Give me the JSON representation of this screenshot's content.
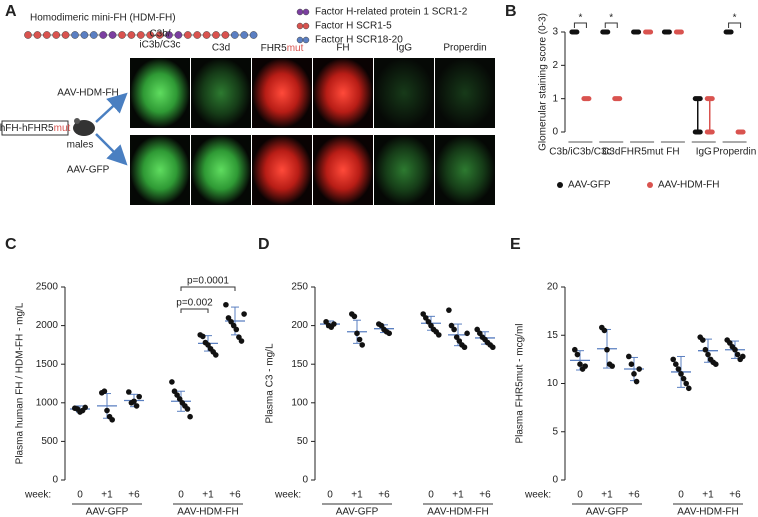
{
  "panels": [
    "A",
    "B",
    "C",
    "D",
    "E"
  ],
  "panel_a": {
    "title": "Homodimeric mini-FH (HDM-FH)",
    "legend": [
      {
        "label": "Factor H-related protein 1 SCR1-2",
        "color": "#7b3fa0"
      },
      {
        "label": "Factor H SCR1-5",
        "color": "#d9534f"
      },
      {
        "label": "Factor H SCR18-20",
        "color": "#5b7fc2"
      }
    ],
    "columns": [
      {
        "lines": [
          "C3b/",
          "iC3b/C3c"
        ]
      },
      {
        "text": "C3d"
      },
      {
        "text": "FHR5",
        "suffix": "mut"
      },
      {
        "text": "FH"
      },
      {
        "text": "IgG"
      },
      {
        "text": "Properdin"
      }
    ],
    "rows": [
      "AAV-HDM-FH",
      "AAV-GFP"
    ],
    "mouse_label": {
      "text": "hFH-hFHR5",
      "suffix": "mut"
    },
    "mouse_sublabel": "males"
  },
  "chart_data": [
    {
      "type": "score",
      "ylabel": "Glomerular staining score (0-3)",
      "categories": [
        "C3b/iC3b/C3c",
        "C3d",
        "FHR5mut",
        "FH",
        "IgG",
        "Properdin"
      ],
      "ylim": [
        0,
        3
      ],
      "yticks": [
        0,
        1,
        2,
        3
      ],
      "series": [
        {
          "name": "AAV-GFP",
          "color": "#111111",
          "values": [
            [
              3
            ],
            [
              3
            ],
            [
              3
            ],
            [
              3
            ],
            [
              0,
              1
            ],
            [
              3
            ]
          ]
        },
        {
          "name": "AAV-HDM-FH",
          "color": "#d9534f",
          "values": [
            [
              1
            ],
            [
              1
            ],
            [
              3
            ],
            [
              3
            ],
            [
              0,
              1
            ],
            [
              0
            ]
          ]
        }
      ],
      "annotations": [
        {
          "category": 0,
          "text": "*"
        },
        {
          "category": 1,
          "text": "*"
        },
        {
          "category": 5,
          "text": "*"
        }
      ]
    },
    {
      "type": "dot",
      "ylabel": "Plasma human FH / HDM-FH - mg/L",
      "x_label": "week:",
      "categories": [
        "0",
        "+1",
        "+6",
        "0",
        "+1",
        "+6"
      ],
      "groups": [
        "AAV-GFP",
        "AAV-HDM-FH"
      ],
      "ylim": [
        0,
        2500
      ],
      "yticks": [
        0,
        500,
        1000,
        1500,
        2000,
        2500
      ],
      "series": [
        {
          "color": "#111111",
          "values": [
            [
              930,
              920,
              880,
              900,
              940
            ],
            [
              1130,
              1150,
              900,
              820,
              780
            ],
            [
              1140,
              1000,
              1020,
              960,
              1080
            ],
            [
              1270,
              1150,
              1100,
              1050,
              1000,
              960,
              920,
              820
            ],
            [
              1880,
              1860,
              1780,
              1750,
              1700,
              1660,
              1620
            ],
            [
              2270,
              2100,
              2050,
              2000,
              1950,
              1850,
              1800,
              2150
            ]
          ],
          "mean": [
            920,
            960,
            1030,
            1020,
            1770,
            2060
          ],
          "sd": [
            40,
            160,
            80,
            130,
            100,
            180
          ]
        }
      ],
      "annotations": [
        {
          "from": 3,
          "to": 4,
          "text": "p=0.002"
        },
        {
          "from": 3,
          "to": 5,
          "text": "p=0.0001"
        }
      ]
    },
    {
      "type": "dot",
      "ylabel": "Plasma C3 - mg/L",
      "x_label": "week:",
      "categories": [
        "0",
        "+1",
        "+6",
        "0",
        "+1",
        "+6"
      ],
      "groups": [
        "AAV-GFP",
        "AAV-HDM-FH"
      ],
      "ylim": [
        0,
        250
      ],
      "yticks": [
        0,
        50,
        100,
        150,
        200,
        250
      ],
      "series": [
        {
          "color": "#111111",
          "values": [
            [
              205,
              200,
              198,
              202
            ],
            [
              215,
              212,
              190,
              182,
              175
            ],
            [
              202,
              200,
              195,
              192,
              190
            ],
            [
              215,
              210,
              205,
              200,
              195,
              192,
              188
            ],
            [
              220,
              200,
              195,
              185,
              180,
              175,
              172,
              190
            ],
            [
              195,
              190,
              185,
              182,
              178,
              175,
              172
            ]
          ],
          "mean": [
            202,
            192,
            196,
            203,
            188,
            184
          ],
          "sd": [
            4,
            15,
            5,
            9,
            14,
            8
          ]
        }
      ]
    },
    {
      "type": "dot",
      "ylabel": "Plasma FHR5mut - mcg/ml",
      "x_label": "week:",
      "categories": [
        "0",
        "+1",
        "+6",
        "0",
        "+1",
        "+6"
      ],
      "groups": [
        "AAV-GFP",
        "AAV-HDM-FH"
      ],
      "ylim": [
        0,
        20
      ],
      "yticks": [
        0,
        5,
        10,
        15,
        20
      ],
      "series": [
        {
          "color": "#111111",
          "values": [
            [
              13.5,
              13,
              12,
              11.5,
              11.8
            ],
            [
              15.8,
              15.5,
              13.5,
              12,
              11.8
            ],
            [
              12.8,
              12,
              11,
              10.2,
              11.5
            ],
            [
              12.5,
              12,
              11.5,
              11,
              10.5,
              10,
              9.5
            ],
            [
              14.8,
              14.5,
              13.5,
              13,
              12.5,
              12.2,
              12
            ],
            [
              14.5,
              14.2,
              13.8,
              13.5,
              13,
              12.5,
              12.8
            ]
          ],
          "mean": [
            12.4,
            13.6,
            11.5,
            11.2,
            13.4,
            13.5
          ],
          "sd": [
            1,
            2,
            1.2,
            1.6,
            1.2,
            0.9
          ]
        }
      ]
    }
  ]
}
